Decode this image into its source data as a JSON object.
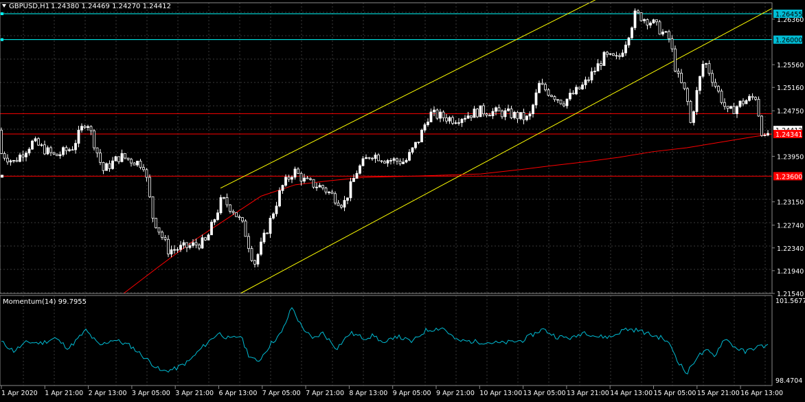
{
  "header": {
    "symbol": "GBPUSD,H1",
    "ohlc": "1.24380 1.24469 1.24270 1.24412",
    "menu_icon": "triangle-down-icon"
  },
  "colors": {
    "background": "#000000",
    "grid": "#3a3a3a",
    "bull": "#ffffff",
    "bear": "#000000",
    "candle_outline": "#ffffff",
    "channel": "#ffff00",
    "support_resistance": "#ff0000",
    "horizontal_level": "#00ffff",
    "moving_average": "#ff0000",
    "momentum": "#00bcd4",
    "axis_text": "#ffffff"
  },
  "chart_data": [
    {
      "type": "line",
      "subtype": "candlestick",
      "title": "GBPUSD,H1",
      "ylim": [
        1.2154,
        1.269
      ],
      "y_ticks": [
        "1.26360",
        "1.25560",
        "1.25160",
        "1.24750",
        "1.23950",
        "1.23150",
        "1.22740",
        "1.22340",
        "1.21940",
        "1.21540"
      ],
      "x_ticks": [
        "1 Apr 2020",
        "1 Apr 21:00",
        "2 Apr 13:00",
        "3 Apr 05:00",
        "3 Apr 21:00",
        "6 Apr 13:00",
        "7 Apr 05:00",
        "7 Apr 21:00",
        "8 Apr 13:00",
        "9 Apr 05:00",
        "9 Apr 21:00",
        "10 Apr 13:00",
        "13 Apr 05:00",
        "13 Apr 21:00",
        "14 Apr 13:00",
        "15 Apr 05:00",
        "15 Apr 21:00",
        "16 Apr 13:00"
      ],
      "price_labels": [
        {
          "value": 1.26455,
          "text": "1.26455",
          "style": "cyan"
        },
        {
          "value": 1.26,
          "text": "1.26000",
          "style": "cyan"
        },
        {
          "value": 1.24412,
          "text": "1.24412",
          "style": "white"
        },
        {
          "value": 1.24341,
          "text": "1.24341",
          "style": "red"
        },
        {
          "value": 1.236,
          "text": "1.23600",
          "style": "red"
        }
      ],
      "horizontal_lines": [
        {
          "name": "cyan-high-level",
          "value": 1.26455,
          "color": "cyan"
        },
        {
          "name": "cyan-round-level",
          "value": 1.26,
          "color": "cyan"
        },
        {
          "name": "red-resistance-level",
          "value": 1.247,
          "color": "red"
        },
        {
          "name": "red-mid-level",
          "value": 1.24341,
          "color": "red"
        },
        {
          "name": "red-support-level",
          "value": 1.236,
          "color": "red"
        }
      ],
      "channel_lines": [
        {
          "name": "channel-upper",
          "points": [
            [
              321,
              1.2339
            ],
            [
              900,
              1.269
            ]
          ]
        },
        {
          "name": "channel-lower",
          "points": [
            [
              350,
              1.2154
            ],
            [
              1124,
              1.2655
            ]
          ]
        }
      ],
      "moving_average": [
        [
          180,
          1.2154
        ],
        [
          230,
          1.22
        ],
        [
          280,
          1.2245
        ],
        [
          330,
          1.2285
        ],
        [
          380,
          1.2325
        ],
        [
          430,
          1.2345
        ],
        [
          480,
          1.2352
        ],
        [
          530,
          1.2358
        ],
        [
          600,
          1.236
        ],
        [
          700,
          1.2364
        ],
        [
          760,
          1.2372
        ],
        [
          800,
          1.2378
        ],
        [
          850,
          1.2385
        ],
        [
          900,
          1.2393
        ],
        [
          950,
          1.2403
        ],
        [
          1000,
          1.241
        ],
        [
          1050,
          1.242
        ],
        [
          1100,
          1.243
        ],
        [
          1124,
          1.2434
        ]
      ],
      "series": [
        {
          "name": "GBPUSD,H1",
          "ohlc_keyframes": [
            [
              2,
              1.24
            ],
            [
              20,
              1.2385
            ],
            [
              48,
              1.242
            ],
            [
              80,
              1.2395
            ],
            [
              105,
              1.241
            ],
            [
              126,
              1.246
            ],
            [
              150,
              1.237
            ],
            [
              175,
              1.2395
            ],
            [
              210,
              1.238
            ],
            [
              222,
              1.229
            ],
            [
              245,
              1.223
            ],
            [
              270,
              1.2235
            ],
            [
              300,
              1.2245
            ],
            [
              323,
              1.232
            ],
            [
              340,
              1.23
            ],
            [
              355,
              1.227
            ],
            [
              370,
              1.2205
            ],
            [
              390,
              1.227
            ],
            [
              410,
              1.234
            ],
            [
              428,
              1.237
            ],
            [
              445,
              1.235
            ],
            [
              470,
              1.234
            ],
            [
              500,
              1.231
            ],
            [
              520,
              1.237
            ],
            [
              540,
              1.24
            ],
            [
              560,
              1.239
            ],
            [
              590,
              1.2385
            ],
            [
              610,
              1.2425
            ],
            [
              625,
              1.247
            ],
            [
              660,
              1.246
            ],
            [
              700,
              1.2475
            ],
            [
              740,
              1.247
            ],
            [
              770,
              1.246
            ],
            [
              785,
              1.252
            ],
            [
              820,
              1.249
            ],
            [
              850,
              1.252
            ],
            [
              880,
              1.257
            ],
            [
              900,
              1.2565
            ],
            [
              912,
              1.26
            ],
            [
              925,
              1.2645
            ],
            [
              950,
              1.263
            ],
            [
              975,
              1.26
            ],
            [
              985,
              1.254
            ],
            [
              1000,
              1.25
            ],
            [
              1005,
              1.245
            ],
            [
              1015,
              1.251
            ],
            [
              1025,
              1.2565
            ],
            [
              1045,
              1.251
            ],
            [
              1060,
              1.247
            ],
            [
              1080,
              1.249
            ],
            [
              1100,
              1.25
            ],
            [
              1112,
              1.242
            ],
            [
              1120,
              1.2441
            ]
          ]
        }
      ]
    },
    {
      "type": "line",
      "title": "Momentum(14) 99.7955",
      "ylim": [
        98.4704,
        101.5677
      ],
      "y_ticks": [
        "101.5677",
        "98.4704"
      ],
      "series": [
        {
          "name": "Momentum(14)",
          "keyframes": [
            [
              2,
              99.95
            ],
            [
              20,
              99.6
            ],
            [
              40,
              99.95
            ],
            [
              60,
              99.9
            ],
            [
              80,
              100.1
            ],
            [
              100,
              99.7
            ],
            [
              125,
              100.4
            ],
            [
              145,
              99.8
            ],
            [
              165,
              100.05
            ],
            [
              190,
              99.8
            ],
            [
              215,
              99.25
            ],
            [
              235,
              98.8
            ],
            [
              255,
              98.9
            ],
            [
              275,
              99.2
            ],
            [
              295,
              99.75
            ],
            [
              318,
              100.3
            ],
            [
              335,
              100.05
            ],
            [
              350,
              100.2
            ],
            [
              362,
              99.45
            ],
            [
              375,
              99.15
            ],
            [
              395,
              99.9
            ],
            [
              410,
              100.3
            ],
            [
              425,
              101.3
            ],
            [
              438,
              100.6
            ],
            [
              455,
              100.05
            ],
            [
              470,
              100.3
            ],
            [
              490,
              99.7
            ],
            [
              510,
              100.3
            ],
            [
              530,
              100.1
            ],
            [
              545,
              100.2
            ],
            [
              560,
              99.85
            ],
            [
              575,
              100.2
            ],
            [
              600,
              99.95
            ],
            [
              620,
              100.4
            ],
            [
              645,
              100.5
            ],
            [
              665,
              100.0
            ],
            [
              700,
              99.95
            ],
            [
              730,
              99.9
            ],
            [
              760,
              100.0
            ],
            [
              790,
              100.45
            ],
            [
              810,
              100.15
            ],
            [
              835,
              100.1
            ],
            [
              850,
              100.35
            ],
            [
              870,
              100.15
            ],
            [
              890,
              100.15
            ],
            [
              910,
              100.45
            ],
            [
              930,
              100.4
            ],
            [
              950,
              100.2
            ],
            [
              965,
              100.1
            ],
            [
              978,
              99.75
            ],
            [
              985,
              99.3
            ],
            [
              1000,
              98.7
            ],
            [
              1015,
              99.4
            ],
            [
              1030,
              99.6
            ],
            [
              1040,
              99.4
            ],
            [
              1055,
              100.1
            ],
            [
              1070,
              99.75
            ],
            [
              1085,
              99.55
            ],
            [
              1100,
              99.75
            ],
            [
              1115,
              99.8
            ]
          ]
        }
      ]
    }
  ]
}
